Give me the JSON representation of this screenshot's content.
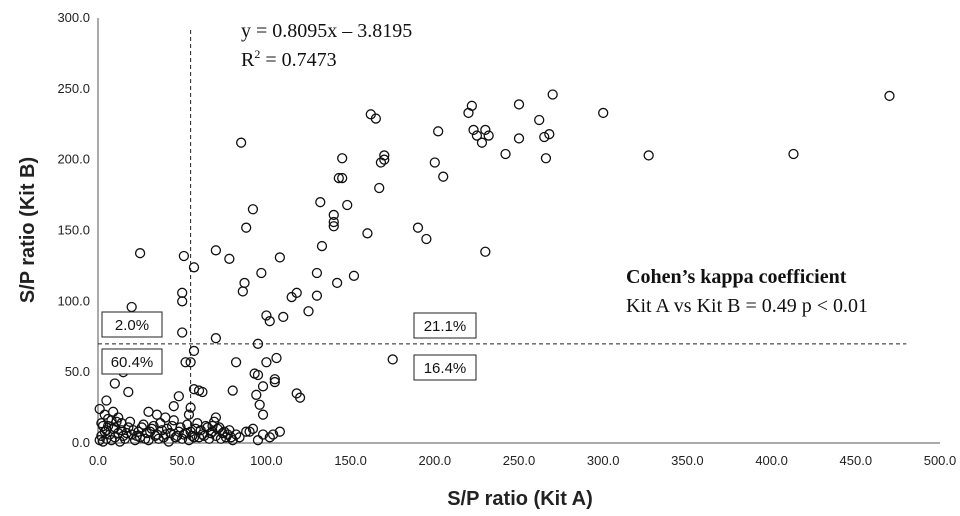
{
  "chart_data": {
    "type": "scatter",
    "xlabel": "S/P ratio (Kit A)",
    "ylabel": "S/P ratio (Kit B)",
    "xlim": [
      0,
      500
    ],
    "ylim": [
      0,
      300
    ],
    "x_ticks": [
      "0.0",
      "50.0",
      "100.0",
      "150.0",
      "200.0",
      "250.0",
      "300.0",
      "350.0",
      "400.0",
      "450.0",
      "500.0"
    ],
    "y_ticks": [
      "0.0",
      "50.0",
      "100.0",
      "150.0",
      "200.0",
      "250.0",
      "300.0"
    ],
    "cutoff_x": 55,
    "cutoff_y": 70,
    "grid": false,
    "equation": {
      "line1": "y = 0.8095x – 3.8195",
      "r2_prefix": "R",
      "r2_sup": "2",
      "r2_rest": " = 0.7473"
    },
    "kappa": {
      "title": "Cohen’s kappa coefficient",
      "text": "Kit A vs Kit B = 0.49 p < 0.01"
    },
    "quadrants": {
      "upper_left": "2.0%",
      "upper_right": "21.1%",
      "lower_left": "60.4%",
      "lower_right": "16.4%"
    },
    "points": [
      [
        1,
        2
      ],
      [
        2,
        5
      ],
      [
        3,
        1
      ],
      [
        4,
        8
      ],
      [
        5,
        3
      ],
      [
        6,
        12
      ],
      [
        7,
        6
      ],
      [
        8,
        2
      ],
      [
        9,
        10
      ],
      [
        10,
        4
      ],
      [
        11,
        15
      ],
      [
        12,
        7
      ],
      [
        13,
        1
      ],
      [
        14,
        9
      ],
      [
        15,
        5
      ],
      [
        16,
        3
      ],
      [
        18,
        11
      ],
      [
        20,
        6
      ],
      [
        22,
        2
      ],
      [
        24,
        8
      ],
      [
        25,
        4
      ],
      [
        27,
        13
      ],
      [
        29,
        7
      ],
      [
        30,
        2
      ],
      [
        32,
        10
      ],
      [
        34,
        5
      ],
      [
        36,
        3
      ],
      [
        38,
        9
      ],
      [
        40,
        6
      ],
      [
        42,
        1
      ],
      [
        44,
        12
      ],
      [
        46,
        4
      ],
      [
        48,
        8
      ],
      [
        50,
        3
      ],
      [
        52,
        7
      ],
      [
        54,
        2
      ],
      [
        56,
        5
      ],
      [
        58,
        10
      ],
      [
        60,
        4
      ],
      [
        62,
        6
      ],
      [
        64,
        12
      ],
      [
        66,
        3
      ],
      [
        68,
        8
      ],
      [
        70,
        5
      ],
      [
        72,
        11
      ],
      [
        74,
        7
      ],
      [
        76,
        4
      ],
      [
        78,
        9
      ],
      [
        80,
        2
      ],
      [
        82,
        6
      ],
      [
        2,
        14
      ],
      [
        4,
        20
      ],
      [
        6,
        17
      ],
      [
        9,
        22
      ],
      [
        12,
        18
      ],
      [
        1,
        24
      ],
      [
        3,
        12
      ],
      [
        5,
        9
      ],
      [
        8,
        16
      ],
      [
        10,
        11
      ],
      [
        14,
        14
      ],
      [
        17,
        7
      ],
      [
        19,
        15
      ],
      [
        21,
        9
      ],
      [
        23,
        5
      ],
      [
        26,
        11
      ],
      [
        28,
        3
      ],
      [
        31,
        8
      ],
      [
        33,
        12
      ],
      [
        35,
        6
      ],
      [
        37,
        14
      ],
      [
        39,
        4
      ],
      [
        41,
        10
      ],
      [
        43,
        7
      ],
      [
        45,
        16
      ],
      [
        47,
        5
      ],
      [
        49,
        11
      ],
      [
        51,
        6
      ],
      [
        53,
        13
      ],
      [
        55,
        8
      ],
      [
        57,
        4
      ],
      [
        59,
        14
      ],
      [
        61,
        9
      ],
      [
        63,
        5
      ],
      [
        65,
        11
      ],
      [
        67,
        7
      ],
      [
        69,
        15
      ],
      [
        71,
        10
      ],
      [
        73,
        3
      ],
      [
        75,
        8
      ],
      [
        77,
        6
      ],
      [
        79,
        4
      ],
      [
        84,
        4
      ],
      [
        88,
        8
      ],
      [
        92,
        10
      ],
      [
        95,
        2
      ],
      [
        98,
        6
      ],
      [
        102,
        4
      ],
      [
        104,
        6
      ],
      [
        108,
        8
      ],
      [
        5,
        30
      ],
      [
        10,
        42
      ],
      [
        15,
        50
      ],
      [
        18,
        36
      ],
      [
        20,
        96
      ],
      [
        25,
        134
      ],
      [
        30,
        22
      ],
      [
        35,
        20
      ],
      [
        40,
        18
      ],
      [
        45,
        26
      ],
      [
        48,
        33
      ],
      [
        50,
        78
      ],
      [
        50,
        100
      ],
      [
        50,
        106
      ],
      [
        51,
        132
      ],
      [
        52,
        57
      ],
      [
        54,
        20
      ],
      [
        55,
        25
      ],
      [
        55,
        57
      ],
      [
        57,
        65
      ],
      [
        57,
        124
      ],
      [
        57,
        38
      ],
      [
        60,
        37
      ],
      [
        62,
        36
      ],
      [
        68,
        12
      ],
      [
        70,
        18
      ],
      [
        70,
        136
      ],
      [
        70,
        74
      ],
      [
        78,
        130
      ],
      [
        80,
        37
      ],
      [
        82,
        57
      ],
      [
        85,
        212
      ],
      [
        86,
        107
      ],
      [
        87,
        113
      ],
      [
        88,
        152
      ],
      [
        90,
        8
      ],
      [
        92,
        165
      ],
      [
        93,
        49
      ],
      [
        94,
        34
      ],
      [
        95,
        70
      ],
      [
        95,
        48
      ],
      [
        96,
        27
      ],
      [
        97,
        120
      ],
      [
        98,
        40
      ],
      [
        98,
        20
      ],
      [
        100,
        90
      ],
      [
        100,
        57
      ],
      [
        102,
        86
      ],
      [
        105,
        45
      ],
      [
        105,
        43
      ],
      [
        106,
        60
      ],
      [
        108,
        131
      ],
      [
        110,
        89
      ],
      [
        115,
        103
      ],
      [
        118,
        106
      ],
      [
        118,
        35
      ],
      [
        120,
        32
      ],
      [
        125,
        93
      ],
      [
        130,
        120
      ],
      [
        130,
        104
      ],
      [
        132,
        170
      ],
      [
        133,
        139
      ],
      [
        140,
        153
      ],
      [
        140,
        156
      ],
      [
        140,
        161
      ],
      [
        142,
        113
      ],
      [
        143,
        187
      ],
      [
        145,
        187
      ],
      [
        145,
        201
      ],
      [
        148,
        168
      ],
      [
        152,
        118
      ],
      [
        160,
        148
      ],
      [
        162,
        232
      ],
      [
        165,
        229
      ],
      [
        167,
        180
      ],
      [
        168,
        198
      ],
      [
        170,
        200
      ],
      [
        170,
        203
      ],
      [
        175,
        59
      ],
      [
        190,
        152
      ],
      [
        195,
        144
      ],
      [
        200,
        198
      ],
      [
        202,
        220
      ],
      [
        205,
        188
      ],
      [
        220,
        233
      ],
      [
        222,
        238
      ],
      [
        223,
        221
      ],
      [
        225,
        217
      ],
      [
        228,
        212
      ],
      [
        230,
        221
      ],
      [
        232,
        217
      ],
      [
        230,
        135
      ],
      [
        242,
        204
      ],
      [
        250,
        215
      ],
      [
        250,
        239
      ],
      [
        262,
        228
      ],
      [
        265,
        216
      ],
      [
        266,
        201
      ],
      [
        268,
        218
      ],
      [
        270,
        246
      ],
      [
        300,
        233
      ],
      [
        327,
        203
      ],
      [
        413,
        204
      ],
      [
        470,
        245
      ]
    ]
  }
}
